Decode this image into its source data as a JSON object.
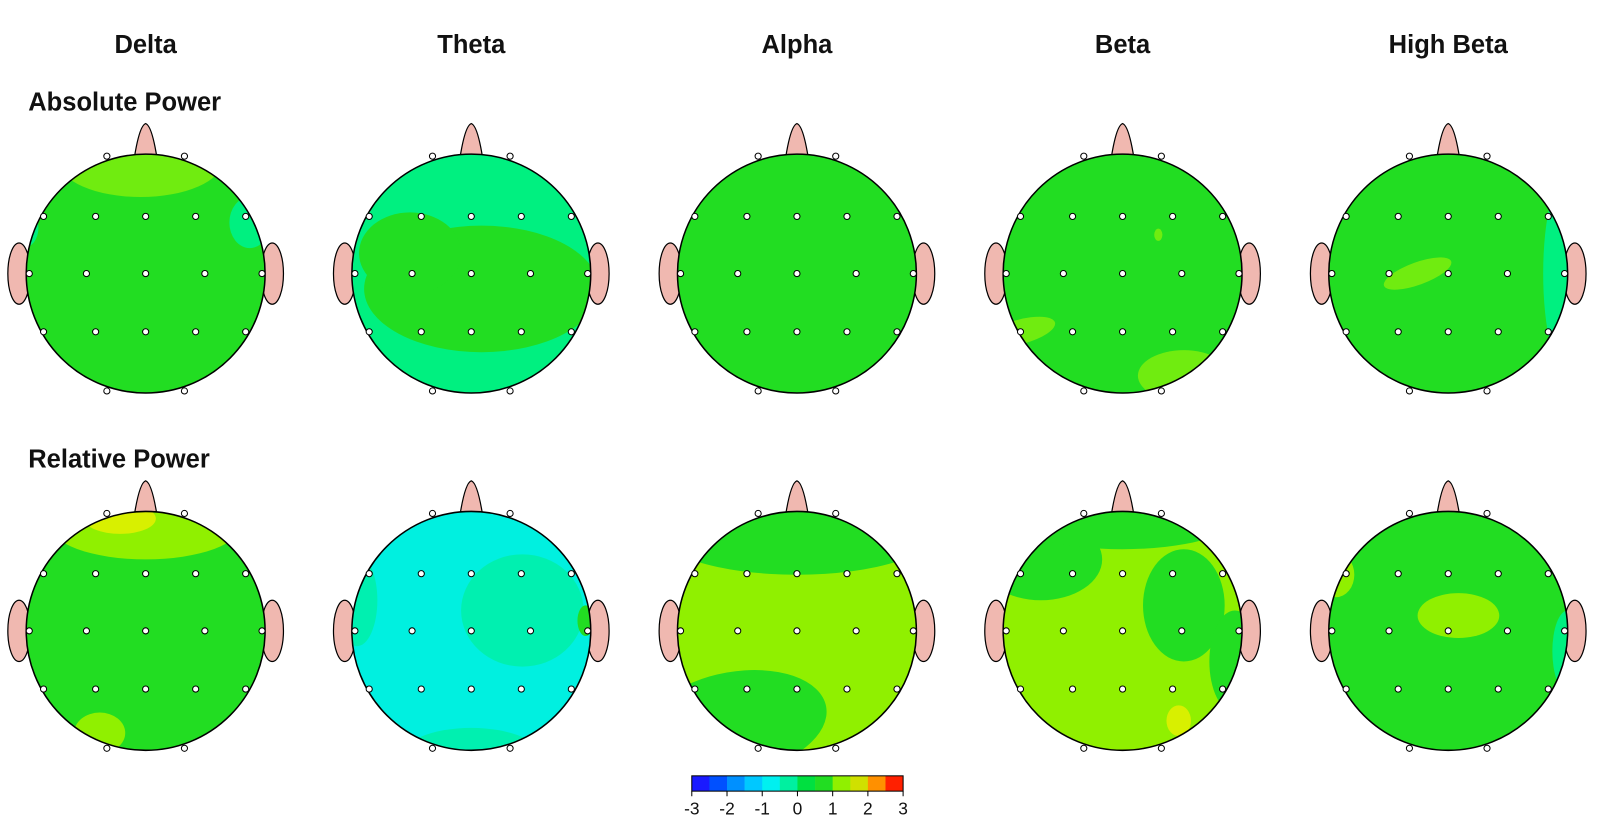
{
  "columns": [
    "Delta",
    "Theta",
    "Alpha",
    "Beta",
    "High Beta"
  ],
  "rows": [
    "Absolute Power",
    "Relative Power"
  ],
  "colorbar": {
    "ticks": [
      -3,
      -2,
      -1,
      0,
      1,
      2,
      3
    ],
    "colors": [
      "#1a1aff",
      "#0050ff",
      "#0090ff",
      "#00c8ff",
      "#00f0f0",
      "#00f0a0",
      "#00e040",
      "#22dd22",
      "#90f000",
      "#d0e000",
      "#ff9000",
      "#ff2000"
    ]
  }
}
